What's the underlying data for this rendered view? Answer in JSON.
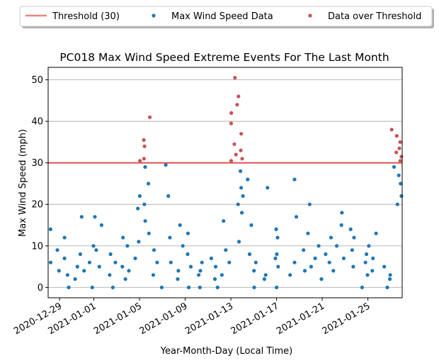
{
  "chart_data": {
    "type": "scatter",
    "title": "PC018 Max Wind Speed Extreme Events For The Last Month",
    "xlabel": "Year-Month-Day (Local Time)",
    "ylabel": "Max Wind Speed (mph)",
    "xlim": [
      "2020-12-28",
      "2021-01-28"
    ],
    "ylim": [
      -2.5,
      53
    ],
    "yticks": [
      0,
      10,
      20,
      30,
      40,
      50
    ],
    "xticks": [
      "2020-12-29",
      "2021-01-01",
      "2021-01-05",
      "2021-01-09",
      "2021-01-13",
      "2021-01-17",
      "2021-01-21",
      "2021-01-25"
    ],
    "grid": "horizontal",
    "legend_position": "top",
    "threshold": {
      "name": "Threshold (30)",
      "value": 30,
      "color": "#e05a5a"
    },
    "series": [
      {
        "name": "Max Wind Speed Data",
        "color": "#1f77b4",
        "points": [
          [
            "2020-12-28",
            6
          ],
          [
            "2020-12-28",
            14
          ],
          [
            "2020-12-28",
            4
          ],
          [
            "2020-12-28",
            9
          ],
          [
            "2020-12-29",
            3
          ],
          [
            "2020-12-29",
            7
          ],
          [
            "2020-12-29",
            12
          ],
          [
            "2020-12-29",
            0
          ],
          [
            "2020-12-30",
            5
          ],
          [
            "2020-12-30",
            17
          ],
          [
            "2020-12-30",
            2
          ],
          [
            "2020-12-30",
            8
          ],
          [
            "2020-12-31",
            4
          ],
          [
            "2020-12-31",
            6
          ],
          [
            "2020-12-31",
            0
          ],
          [
            "2020-12-31",
            10
          ],
          [
            "2021-01-01",
            15
          ],
          [
            "2021-01-01",
            9
          ],
          [
            "2021-01-01",
            5
          ],
          [
            "2021-01-01",
            17
          ],
          [
            "2021-01-02",
            3
          ],
          [
            "2021-01-02",
            6
          ],
          [
            "2021-01-02",
            0
          ],
          [
            "2021-01-02",
            8
          ],
          [
            "2021-01-03",
            5
          ],
          [
            "2021-01-03",
            10
          ],
          [
            "2021-01-03",
            2
          ],
          [
            "2021-01-03",
            12
          ],
          [
            "2021-01-04",
            7
          ],
          [
            "2021-01-04",
            19
          ],
          [
            "2021-01-04",
            4
          ],
          [
            "2021-01-04",
            11
          ],
          [
            "2021-01-05",
            20
          ],
          [
            "2021-01-05",
            25
          ],
          [
            "2021-01-05",
            29
          ],
          [
            "2021-01-05",
            16
          ],
          [
            "2021-01-05",
            13
          ],
          [
            "2021-01-05",
            22
          ],
          [
            "2021-01-06",
            6
          ],
          [
            "2021-01-06",
            3
          ],
          [
            "2021-01-06",
            9
          ],
          [
            "2021-01-06",
            0
          ],
          [
            "2021-01-07",
            22
          ],
          [
            "2021-01-07",
            29.5
          ],
          [
            "2021-01-07",
            12
          ],
          [
            "2021-01-07",
            6
          ],
          [
            "2021-01-08",
            4
          ],
          [
            "2021-01-08",
            10
          ],
          [
            "2021-01-08",
            2
          ],
          [
            "2021-01-08",
            15
          ],
          [
            "2021-01-09",
            5
          ],
          [
            "2021-01-09",
            13
          ],
          [
            "2021-01-09",
            0
          ],
          [
            "2021-01-09",
            8
          ],
          [
            "2021-01-10",
            3
          ],
          [
            "2021-01-10",
            6
          ],
          [
            "2021-01-10",
            0
          ],
          [
            "2021-01-10",
            4
          ],
          [
            "2021-01-11",
            5
          ],
          [
            "2021-01-11",
            2
          ],
          [
            "2021-01-11",
            7
          ],
          [
            "2021-01-11",
            0
          ],
          [
            "2021-01-12",
            6
          ],
          [
            "2021-01-12",
            9
          ],
          [
            "2021-01-12",
            16
          ],
          [
            "2021-01-12",
            3
          ],
          [
            "2021-01-13",
            20
          ],
          [
            "2021-01-13",
            28
          ],
          [
            "2021-01-13",
            24
          ],
          [
            "2021-01-13",
            18
          ],
          [
            "2021-01-13",
            11
          ],
          [
            "2021-01-14",
            22
          ],
          [
            "2021-01-14",
            15
          ],
          [
            "2021-01-14",
            26
          ],
          [
            "2021-01-14",
            8
          ],
          [
            "2021-01-15",
            4
          ],
          [
            "2021-01-15",
            6
          ],
          [
            "2021-01-15",
            0
          ],
          [
            "2021-01-15",
            2
          ],
          [
            "2021-01-16",
            24
          ],
          [
            "2021-01-16",
            14
          ],
          [
            "2021-01-16",
            7
          ],
          [
            "2021-01-16",
            3
          ],
          [
            "2021-01-17",
            5
          ],
          [
            "2021-01-17",
            8
          ],
          [
            "2021-01-17",
            0
          ],
          [
            "2021-01-17",
            12
          ],
          [
            "2021-01-18",
            26
          ],
          [
            "2021-01-18",
            6
          ],
          [
            "2021-01-18",
            17
          ],
          [
            "2021-01-18",
            3
          ],
          [
            "2021-01-19",
            9
          ],
          [
            "2021-01-19",
            4
          ],
          [
            "2021-01-19",
            20
          ],
          [
            "2021-01-19",
            13
          ],
          [
            "2021-01-20",
            7
          ],
          [
            "2021-01-20",
            5
          ],
          [
            "2021-01-20",
            10
          ],
          [
            "2021-01-20",
            2
          ],
          [
            "2021-01-21",
            4
          ],
          [
            "2021-01-21",
            8
          ],
          [
            "2021-01-21",
            12
          ],
          [
            "2021-01-21",
            6
          ],
          [
            "2021-01-22",
            10
          ],
          [
            "2021-01-22",
            15
          ],
          [
            "2021-01-22",
            18
          ],
          [
            "2021-01-22",
            7
          ],
          [
            "2021-01-23",
            12
          ],
          [
            "2021-01-23",
            14
          ],
          [
            "2021-01-23",
            9
          ],
          [
            "2021-01-23",
            5
          ],
          [
            "2021-01-24",
            8
          ],
          [
            "2021-01-24",
            3
          ],
          [
            "2021-01-24",
            6
          ],
          [
            "2021-01-24",
            0
          ],
          [
            "2021-01-25",
            13
          ],
          [
            "2021-01-25",
            10
          ],
          [
            "2021-01-25",
            4
          ],
          [
            "2021-01-25",
            7
          ],
          [
            "2021-01-26",
            3
          ],
          [
            "2021-01-26",
            5
          ],
          [
            "2021-01-26",
            0
          ],
          [
            "2021-01-26",
            2
          ],
          [
            "2021-01-27",
            22
          ],
          [
            "2021-01-27",
            27
          ],
          [
            "2021-01-27",
            29
          ],
          [
            "2021-01-27",
            25
          ],
          [
            "2021-01-27",
            20
          ]
        ]
      },
      {
        "name": "Data over Threshold",
        "color": "#c85454",
        "points": [
          [
            "2021-01-05",
            41
          ],
          [
            "2021-01-05",
            35.5
          ],
          [
            "2021-01-05",
            34
          ],
          [
            "2021-01-05",
            31
          ],
          [
            "2021-01-05",
            30.5
          ],
          [
            "2021-01-13",
            50.5
          ],
          [
            "2021-01-13",
            46
          ],
          [
            "2021-01-13",
            44
          ],
          [
            "2021-01-13",
            42
          ],
          [
            "2021-01-13",
            39.5
          ],
          [
            "2021-01-13",
            37
          ],
          [
            "2021-01-13",
            34.5
          ],
          [
            "2021-01-13",
            33
          ],
          [
            "2021-01-13",
            32
          ],
          [
            "2021-01-13",
            31
          ],
          [
            "2021-01-13",
            30.5
          ],
          [
            "2021-01-27",
            38
          ],
          [
            "2021-01-27",
            36.5
          ],
          [
            "2021-01-27",
            35
          ],
          [
            "2021-01-27",
            33.5
          ],
          [
            "2021-01-27",
            32.5
          ],
          [
            "2021-01-27",
            31.5
          ],
          [
            "2021-01-27",
            30.5
          ]
        ]
      }
    ]
  }
}
